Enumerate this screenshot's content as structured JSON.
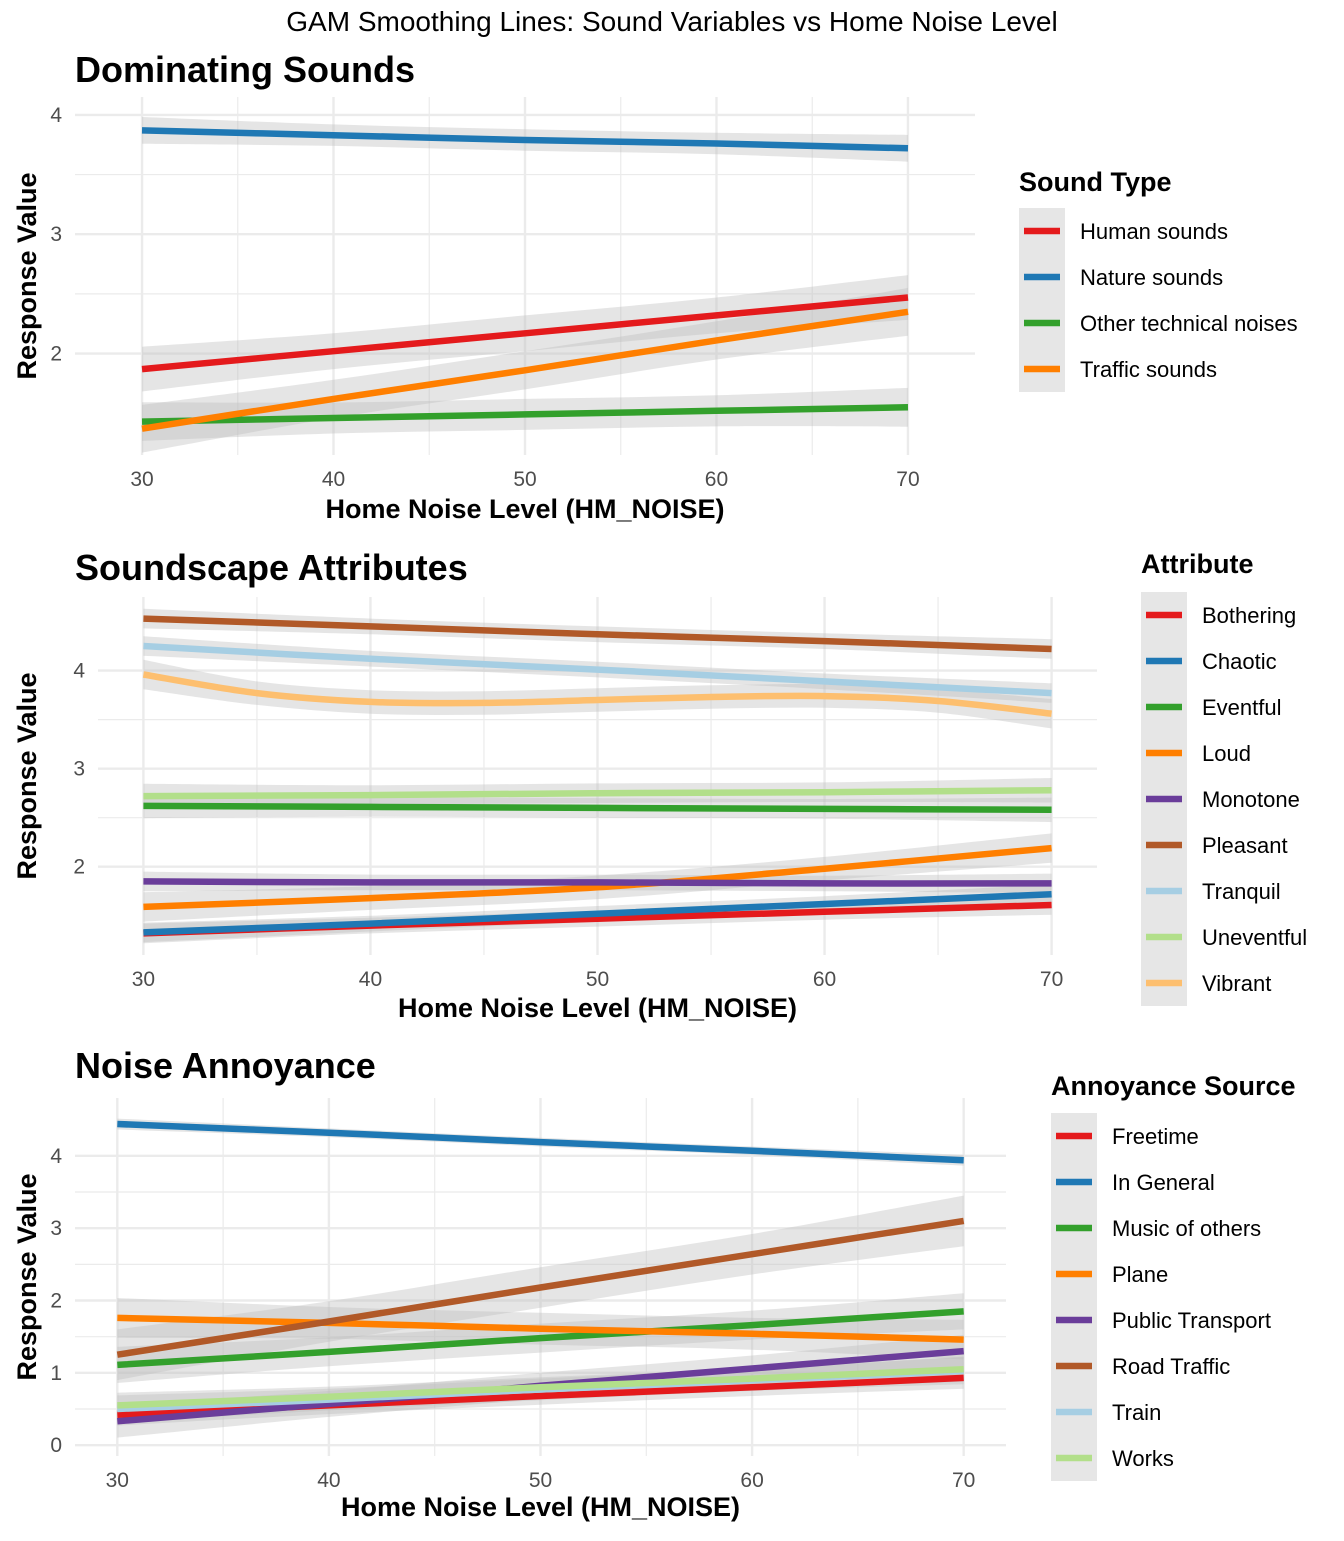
{
  "figure_title": "GAM Smoothing Lines: Sound Variables vs Home Noise Level",
  "colors": {
    "red": "#e41a1c",
    "blue": "#1f78b4",
    "green": "#33a02c",
    "orange": "#ff7f00",
    "purple": "#6a3d9a",
    "brown": "#b15928",
    "lightblue": "#a6cee3",
    "lightgreen": "#b2df8a",
    "lightorange": "#fdbf6f",
    "ribbon": "#bebebe",
    "grid": "#ebebeb",
    "legend_bg": "#e6e6e6"
  },
  "chart_data": [
    {
      "type": "line",
      "title": "Dominating Sounds",
      "xlabel": "Home Noise Level (HM_NOISE)",
      "ylabel": "Response Value",
      "xlim": [
        26.5,
        73.5
      ],
      "ylim": [
        1.15,
        4.15
      ],
      "x_ticks": [
        "30",
        "40",
        "50",
        "60",
        "70"
      ],
      "y_ticks": [
        "2",
        "3",
        "4"
      ],
      "legend_title": "Sound Type",
      "legend_position": "right",
      "grid": true,
      "series": [
        {
          "name": "Human sounds",
          "color": "red",
          "se": 0.15,
          "points": [
            [
              30,
              1.87
            ],
            [
              40,
              2.02
            ],
            [
              50,
              2.17
            ],
            [
              60,
              2.32
            ],
            [
              70,
              2.47
            ]
          ]
        },
        {
          "name": "Nature sounds",
          "color": "blue",
          "se": 0.09,
          "points": [
            [
              30,
              3.87
            ],
            [
              40,
              3.83
            ],
            [
              50,
              3.79
            ],
            [
              60,
              3.76
            ],
            [
              70,
              3.72
            ]
          ]
        },
        {
          "name": "Other technical noises",
          "color": "green",
          "se": 0.13,
          "points": [
            [
              30,
              1.43
            ],
            [
              40,
              1.46
            ],
            [
              50,
              1.49
            ],
            [
              60,
              1.52
            ],
            [
              70,
              1.55
            ]
          ]
        },
        {
          "name": "Traffic sounds",
          "color": "orange",
          "se": 0.16,
          "points": [
            [
              30,
              1.37
            ],
            [
              40,
              1.62
            ],
            [
              50,
              1.86
            ],
            [
              60,
              2.11
            ],
            [
              70,
              2.35
            ]
          ]
        }
      ]
    },
    {
      "type": "line",
      "title": "Soundscape Attributes",
      "xlabel": "Home Noise Level (HM_NOISE)",
      "ylabel": "Response Value",
      "xlim": [
        28.0,
        72.0
      ],
      "ylim": [
        1.1,
        4.75
      ],
      "x_ticks": [
        "30",
        "40",
        "50",
        "60",
        "70"
      ],
      "y_ticks": [
        "2",
        "3",
        "4"
      ],
      "legend_title": "Attribute",
      "legend_position": "right",
      "grid": true,
      "series": [
        {
          "name": "Bothering",
          "color": "red",
          "se": 0.08,
          "points": [
            [
              30,
              1.32
            ],
            [
              40,
              1.4
            ],
            [
              50,
              1.47
            ],
            [
              60,
              1.54
            ],
            [
              70,
              1.61
            ]
          ]
        },
        {
          "name": "Chaotic",
          "color": "blue",
          "se": 0.08,
          "points": [
            [
              30,
              1.33
            ],
            [
              40,
              1.42
            ],
            [
              50,
              1.52
            ],
            [
              60,
              1.62
            ],
            [
              70,
              1.72
            ]
          ]
        },
        {
          "name": "Eventful",
          "color": "green",
          "se": 0.1,
          "points": [
            [
              30,
              2.62
            ],
            [
              40,
              2.61
            ],
            [
              50,
              2.6
            ],
            [
              60,
              2.59
            ],
            [
              70,
              2.58
            ]
          ]
        },
        {
          "name": "Loud",
          "color": "orange",
          "se": 0.12,
          "points": [
            [
              30,
              1.59
            ],
            [
              40,
              1.68
            ],
            [
              50,
              1.79
            ],
            [
              60,
              1.98
            ],
            [
              70,
              2.19
            ]
          ]
        },
        {
          "name": "Monotone",
          "color": "purple",
          "se": 0.08,
          "points": [
            [
              30,
              1.85
            ],
            [
              40,
              1.84
            ],
            [
              50,
              1.84
            ],
            [
              60,
              1.83
            ],
            [
              70,
              1.83
            ]
          ]
        },
        {
          "name": "Pleasant",
          "color": "brown",
          "se": 0.08,
          "points": [
            [
              30,
              4.53
            ],
            [
              40,
              4.45
            ],
            [
              50,
              4.37
            ],
            [
              60,
              4.3
            ],
            [
              70,
              4.22
            ]
          ]
        },
        {
          "name": "Tranquil",
          "color": "lightblue",
          "se": 0.08,
          "points": [
            [
              30,
              4.25
            ],
            [
              40,
              4.12
            ],
            [
              50,
              4.01
            ],
            [
              60,
              3.89
            ],
            [
              70,
              3.77
            ]
          ]
        },
        {
          "name": "Uneventful",
          "color": "lightgreen",
          "se": 0.1,
          "points": [
            [
              30,
              2.72
            ],
            [
              40,
              2.73
            ],
            [
              50,
              2.75
            ],
            [
              60,
              2.76
            ],
            [
              70,
              2.78
            ]
          ]
        },
        {
          "name": "Vibrant",
          "color": "lightorange",
          "se": 0.12,
          "points": [
            [
              30,
              3.96
            ],
            [
              35,
              3.77
            ],
            [
              40,
              3.68
            ],
            [
              45,
              3.67
            ],
            [
              50,
              3.7
            ],
            [
              55,
              3.73
            ],
            [
              60,
              3.74
            ],
            [
              65,
              3.69
            ],
            [
              70,
              3.56
            ]
          ]
        }
      ]
    },
    {
      "type": "line",
      "title": "Noise Annoyance",
      "xlabel": "Home Noise Level (HM_NOISE)",
      "ylabel": "Response Value",
      "xlim": [
        28.0,
        72.0
      ],
      "ylim": [
        -0.15,
        4.8
      ],
      "x_ticks": [
        "30",
        "40",
        "50",
        "60",
        "70"
      ],
      "y_ticks": [
        "0",
        "1",
        "2",
        "3",
        "4"
      ],
      "legend_title": "Annoyance Source",
      "legend_position": "right",
      "grid": true,
      "series": [
        {
          "name": "Freetime",
          "color": "red",
          "se": 0.12,
          "points": [
            [
              30,
              0.42
            ],
            [
              40,
              0.55
            ],
            [
              50,
              0.68
            ],
            [
              60,
              0.8
            ],
            [
              70,
              0.93
            ]
          ]
        },
        {
          "name": "In General",
          "color": "blue",
          "se": 0.06,
          "points": [
            [
              30,
              4.44
            ],
            [
              40,
              4.32
            ],
            [
              50,
              4.19
            ],
            [
              60,
              4.07
            ],
            [
              70,
              3.94
            ]
          ]
        },
        {
          "name": "Music of others",
          "color": "green",
          "se": 0.2,
          "points": [
            [
              30,
              1.11
            ],
            [
              40,
              1.29
            ],
            [
              50,
              1.48
            ],
            [
              60,
              1.66
            ],
            [
              70,
              1.85
            ]
          ]
        },
        {
          "name": "Plane",
          "color": "orange",
          "se": 0.22,
          "points": [
            [
              30,
              1.76
            ],
            [
              40,
              1.69
            ],
            [
              50,
              1.61
            ],
            [
              60,
              1.54
            ],
            [
              70,
              1.46
            ]
          ]
        },
        {
          "name": "Public Transport",
          "color": "purple",
          "se": 0.18,
          "points": [
            [
              30,
              0.33
            ],
            [
              40,
              0.57
            ],
            [
              50,
              0.82
            ],
            [
              60,
              1.06
            ],
            [
              70,
              1.3
            ]
          ]
        },
        {
          "name": "Road Traffic",
          "color": "brown",
          "se": 0.28,
          "points": [
            [
              30,
              1.25
            ],
            [
              40,
              1.71
            ],
            [
              50,
              2.18
            ],
            [
              60,
              2.64
            ],
            [
              70,
              3.1
            ]
          ]
        },
        {
          "name": "Train",
          "color": "lightblue",
          "se": 0.15,
          "points": [
            [
              30,
              0.5
            ],
            [
              40,
              0.63
            ],
            [
              50,
              0.77
            ],
            [
              60,
              0.9
            ],
            [
              70,
              1.03
            ]
          ]
        },
        {
          "name": "Works",
          "color": "lightgreen",
          "se": 0.14,
          "points": [
            [
              30,
              0.55
            ],
            [
              40,
              0.67
            ],
            [
              50,
              0.8
            ],
            [
              60,
              0.92
            ],
            [
              70,
              1.05
            ]
          ]
        }
      ]
    }
  ]
}
